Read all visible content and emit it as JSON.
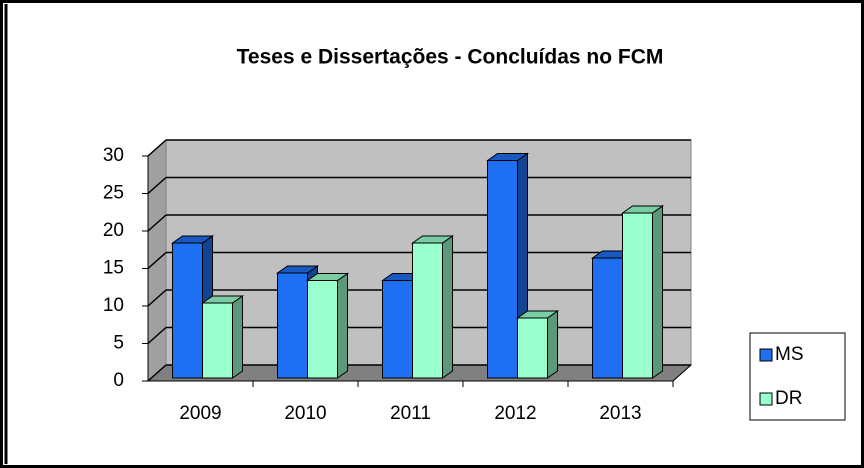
{
  "chart_data": {
    "type": "bar3d",
    "title": "Teses e Dissertações  - Concluídas  no FCM",
    "categories": [
      "2009",
      "2010",
      "2011",
      "2012",
      "2013"
    ],
    "series": [
      {
        "name": "MS",
        "color": "#1f6ff2",
        "values": [
          18,
          14,
          13,
          29,
          16
        ]
      },
      {
        "name": "DR",
        "color": "#99ffcc",
        "values": [
          10,
          13,
          18,
          8,
          22
        ]
      }
    ],
    "ylim": [
      0,
      30
    ],
    "yticks": [
      0,
      5,
      10,
      15,
      20,
      25,
      30
    ],
    "grid": true,
    "legend": "right"
  }
}
